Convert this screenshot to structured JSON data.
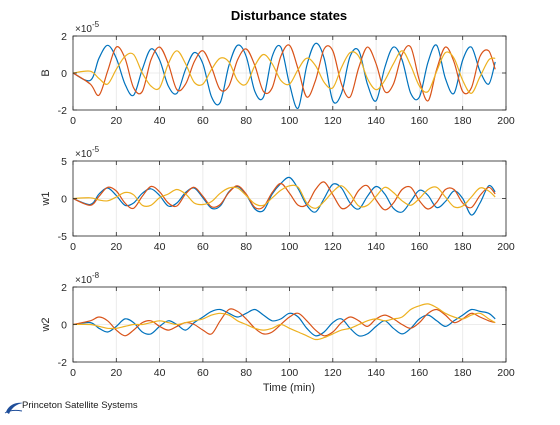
{
  "title": "Disturbance states",
  "xlabel": "Time (min)",
  "footer": {
    "logo_text": "Princeton Satellite Systems"
  },
  "colors": {
    "series1": "#0072BD",
    "series2": "#D95319",
    "series3": "#EDB120",
    "axis": "#262626",
    "grid": "#e6e6e6"
  },
  "chart_data": [
    {
      "type": "line",
      "ylabel": "B",
      "exponent_label": "×10",
      "exponent": "-5",
      "xlim": [
        0,
        200
      ],
      "ylim": [
        -2,
        2
      ],
      "x_ticks": [
        "0",
        "20",
        "40",
        "60",
        "80",
        "100",
        "120",
        "140",
        "160",
        "180",
        "200"
      ],
      "y_ticks": [
        "2",
        "0",
        "-2"
      ],
      "grid": true,
      "x": [
        0,
        8,
        12,
        16,
        20,
        24,
        28,
        32,
        36,
        40,
        44,
        48,
        52,
        56,
        60,
        64,
        68,
        72,
        76,
        80,
        84,
        88,
        92,
        96,
        100,
        104,
        108,
        112,
        116,
        120,
        124,
        128,
        132,
        136,
        140,
        144,
        148,
        152,
        156,
        160,
        164,
        168,
        172,
        176,
        180,
        184,
        188,
        192,
        195
      ],
      "series": [
        {
          "values": [
            0,
            -0.4,
            0.8,
            1.5,
            0.8,
            -0.6,
            -1.2,
            0.2,
            1.3,
            0.7,
            -0.7,
            -1.1,
            0.2,
            1.1,
            0.5,
            -1.3,
            -1.6,
            0.4,
            1.5,
            0.9,
            -1.0,
            -1.3,
            0.9,
            1.4,
            -0.6,
            -1.9,
            0.4,
            1.6,
            0.8,
            -1.5,
            -1.1,
            0.9,
            1.2,
            -0.6,
            -1.5,
            0.3,
            1.4,
            0.7,
            -1.1,
            -1.3,
            0.6,
            1.5,
            -0.3,
            -1.1,
            0.7,
            1.4,
            0.1,
            -0.6,
            0.6
          ]
        },
        {
          "values": [
            0,
            -0.6,
            -1.2,
            0.1,
            1.4,
            0.8,
            -0.8,
            -1.0,
            0.7,
            1.4,
            0.5,
            -0.9,
            -0.6,
            0.6,
            1.2,
            0.3,
            -0.9,
            -0.7,
            0.7,
            1.3,
            0.4,
            -1.0,
            -0.8,
            0.9,
            1.5,
            0.2,
            -1.3,
            -0.4,
            1.3,
            1.2,
            -0.6,
            -1.3,
            0.3,
            1.4,
            0.5,
            -1.0,
            -0.6,
            1.0,
            1.4,
            -0.4,
            -1.5,
            0.2,
            1.4,
            0.6,
            -1.0,
            -0.8,
            0.9,
            1.2,
            0.2
          ]
        },
        {
          "values": [
            0,
            0.1,
            -0.3,
            -0.6,
            0.2,
            0.9,
            1.0,
            0.0,
            -0.7,
            -0.8,
            0.5,
            1.2,
            0.5,
            -0.5,
            -0.6,
            0.2,
            0.8,
            0.6,
            -0.4,
            -0.6,
            0.4,
            1.0,
            0.5,
            -0.4,
            -0.6,
            0.2,
            0.8,
            0.4,
            -0.5,
            -0.8,
            0.3,
            1.1,
            0.9,
            -0.3,
            -0.9,
            -0.4,
            0.5,
            1.2,
            0.4,
            -0.7,
            -1.0,
            0.1,
            1.1,
            0.8,
            -0.4,
            -1.1,
            -0.2,
            0.7,
            0.8
          ]
        }
      ]
    },
    {
      "type": "line",
      "ylabel": "w1",
      "exponent_label": "×10",
      "exponent": "-5",
      "xlim": [
        0,
        200
      ],
      "ylim": [
        -5,
        5
      ],
      "x_ticks": [
        "0",
        "20",
        "40",
        "60",
        "80",
        "100",
        "120",
        "140",
        "160",
        "180",
        "200"
      ],
      "y_ticks": [
        "5",
        "0",
        "-5"
      ],
      "grid": true,
      "x": [
        0,
        8,
        12,
        16,
        20,
        24,
        28,
        32,
        36,
        40,
        44,
        48,
        52,
        56,
        60,
        64,
        68,
        72,
        76,
        80,
        84,
        88,
        92,
        96,
        100,
        104,
        108,
        112,
        116,
        120,
        124,
        128,
        132,
        136,
        140,
        144,
        148,
        152,
        156,
        160,
        164,
        168,
        172,
        176,
        180,
        184,
        188,
        192,
        195
      ],
      "series": [
        {
          "values": [
            0,
            -0.8,
            0.6,
            1.4,
            0.4,
            -0.9,
            -0.6,
            0.7,
            1.3,
            0.4,
            -1.0,
            -0.6,
            0.8,
            1.4,
            0.1,
            -1.3,
            -1.0,
            0.9,
            1.6,
            0.5,
            -1.4,
            -1.6,
            0.6,
            2.0,
            2.8,
            1.3,
            -0.9,
            -1.8,
            0.0,
            1.9,
            1.4,
            -0.6,
            -1.4,
            0.3,
            1.6,
            0.6,
            -1.3,
            -1.8,
            -0.4,
            1.1,
            0.4,
            -1.2,
            -0.4,
            1.0,
            0.0,
            -2.2,
            -0.6,
            1.7,
            0.9
          ]
        },
        {
          "values": [
            0,
            -0.9,
            0.3,
            1.5,
            1.0,
            -0.6,
            -1.3,
            0.3,
            1.6,
            0.9,
            -0.6,
            -1.0,
            0.6,
            1.5,
            0.3,
            -1.1,
            -0.8,
            0.8,
            1.7,
            0.6,
            -1.2,
            -1.1,
            0.8,
            2.0,
            0.7,
            -0.9,
            -0.8,
            1.2,
            2.2,
            0.5,
            -1.3,
            -0.8,
            1.1,
            1.7,
            -0.2,
            -1.5,
            -0.6,
            1.2,
            1.5,
            -0.3,
            -1.4,
            -0.5,
            1.2,
            1.2,
            -0.6,
            -1.2,
            0.4,
            1.5,
            0.6
          ]
        },
        {
          "values": [
            0,
            0.1,
            -0.2,
            -0.3,
            0.2,
            0.8,
            0.5,
            -0.9,
            -0.9,
            0.1,
            0.6,
            1.2,
            0.6,
            -0.6,
            -0.8,
            -0.4,
            0.7,
            1.4,
            1.4,
            0.4,
            -0.7,
            -0.9,
            0.1,
            1.1,
            1.7,
            1.5,
            -0.6,
            -1.3,
            -0.4,
            0.9,
            1.7,
            0.6,
            -1.0,
            -0.9,
            0.3,
            1.5,
            0.8,
            -0.3,
            -0.9,
            0.0,
            1.2,
            1.5,
            0.2,
            -1.1,
            -1.0,
            0.2,
            1.4,
            1.0,
            0.2
          ]
        }
      ]
    },
    {
      "type": "line",
      "ylabel": "w2",
      "exponent_label": "×10",
      "exponent": "-8",
      "xlim": [
        0,
        200
      ],
      "ylim": [
        -2,
        2
      ],
      "x_ticks": [
        "0",
        "20",
        "40",
        "60",
        "80",
        "100",
        "120",
        "140",
        "160",
        "180",
        "200"
      ],
      "y_ticks": [
        "2",
        "0",
        "-2"
      ],
      "grid": true,
      "x": [
        0,
        8,
        12,
        16,
        20,
        24,
        28,
        32,
        36,
        40,
        44,
        48,
        52,
        56,
        60,
        64,
        68,
        72,
        76,
        80,
        84,
        88,
        92,
        96,
        100,
        104,
        108,
        112,
        116,
        120,
        124,
        128,
        132,
        136,
        140,
        144,
        148,
        152,
        156,
        160,
        164,
        168,
        172,
        176,
        180,
        184,
        188,
        192,
        195
      ],
      "series": [
        {
          "values": [
            0,
            0.1,
            -0.2,
            -0.4,
            -0.1,
            0.3,
            0.1,
            -0.4,
            -0.5,
            -0.1,
            0.2,
            0.0,
            -0.3,
            0.1,
            0.4,
            0.7,
            0.8,
            0.6,
            0.4,
            0.6,
            0.8,
            0.5,
            0.2,
            0.3,
            0.6,
            0.4,
            -0.2,
            -0.6,
            -0.4,
            0.1,
            0.3,
            -0.2,
            -0.6,
            -0.5,
            -0.1,
            0.2,
            -0.2,
            -0.5,
            -0.2,
            0.3,
            0.5,
            0.2,
            -0.1,
            0.2,
            0.5,
            0.8,
            0.7,
            0.6,
            0.3
          ]
        },
        {
          "values": [
            0,
            0.2,
            0.4,
            0.2,
            -0.3,
            -0.6,
            -0.3,
            0.1,
            0.2,
            -0.1,
            -0.3,
            -0.1,
            0.1,
            0.0,
            -0.3,
            -0.5,
            0.2,
            0.8,
            0.7,
            0.3,
            -0.2,
            -0.5,
            -0.4,
            0.0,
            0.4,
            0.6,
            0.2,
            -0.3,
            -0.6,
            -0.4,
            0.1,
            0.4,
            0.2,
            -0.1,
            0.3,
            0.5,
            0.3,
            0.0,
            -0.2,
            0.1,
            0.6,
            0.8,
            0.5,
            0.1,
            0.3,
            0.6,
            0.4,
            0.2,
            0.1
          ]
        },
        {
          "values": [
            0,
            0.0,
            -0.1,
            -0.2,
            -0.2,
            -0.1,
            0.0,
            0.0,
            0.1,
            0.2,
            0.1,
            0.0,
            0.1,
            0.2,
            0.3,
            0.5,
            0.6,
            0.5,
            0.2,
            0.0,
            -0.2,
            -0.3,
            -0.2,
            0.0,
            -0.2,
            -0.4,
            -0.6,
            -0.8,
            -0.7,
            -0.5,
            -0.3,
            -0.2,
            0.0,
            0.2,
            0.3,
            0.2,
            0.3,
            0.4,
            0.8,
            1.0,
            1.1,
            0.9,
            0.6,
            0.4,
            0.3,
            0.5,
            0.6,
            0.3,
            0.1
          ]
        }
      ]
    }
  ]
}
